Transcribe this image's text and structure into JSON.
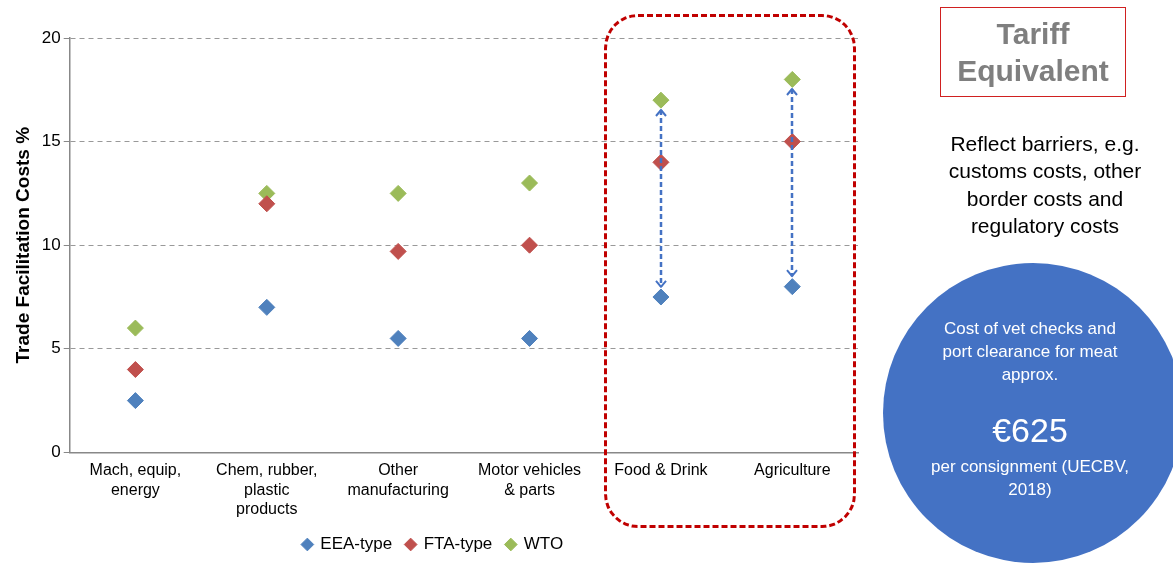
{
  "chart_data": {
    "type": "scatter",
    "ylabel": "Trade Facilitation Costs %",
    "categories": [
      "Mach, equip, energy",
      "Chem, rubber, plastic products",
      "Other manufacturing",
      "Motor vehicles & parts",
      "Food & Drink",
      "Agriculture"
    ],
    "series": [
      {
        "name": "EEA-type",
        "color": "#4f81bd",
        "values": [
          2.5,
          7,
          5.5,
          5.5,
          7.5,
          8
        ]
      },
      {
        "name": "FTA-type",
        "color": "#c0504d",
        "values": [
          4,
          12,
          9.7,
          10,
          14,
          15
        ]
      },
      {
        "name": "WTO",
        "color": "#9bbb59",
        "values": [
          6,
          12.5,
          12.5,
          13,
          17,
          18
        ]
      }
    ],
    "ylim": [
      0,
      20
    ],
    "yticks": [
      0,
      5,
      10,
      15,
      20
    ],
    "grid": "y",
    "legend": "bottom",
    "marker": "diamond",
    "annotations": [
      "Tariff Equivalent",
      "Reflect barriers, e.g. customs costs, other border costs and regulatory costs",
      "Cost of vet checks and port clearance for meat approx.",
      "€625",
      "per consignment (UECBV, 2018)"
    ]
  }
}
